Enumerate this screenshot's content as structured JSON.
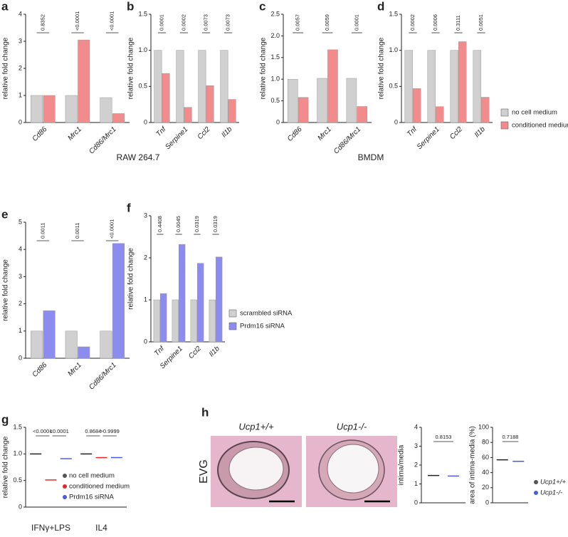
{
  "chart_data": [
    {
      "type": "bar",
      "panel": "a",
      "ylabel": "relative fold change",
      "categories": [
        "Cd86",
        "Mrc1",
        "Cd86/Mrc1"
      ],
      "series": [
        {
          "color": "#d0d0d0",
          "values": [
            1.0,
            1.0,
            0.92
          ]
        },
        {
          "color": "#f28b8b",
          "values": [
            1.0,
            3.05,
            0.33
          ]
        }
      ],
      "ylim": [
        0,
        4
      ],
      "yticks": [
        0,
        1,
        2,
        3,
        4
      ],
      "annotations": [
        "0.8352",
        "<0.0001",
        "<0.0001"
      ]
    },
    {
      "type": "bar",
      "panel": "b",
      "ylabel": "relative fold change",
      "categories": [
        "Tnf",
        "Serpine1",
        "Ccl2",
        "Il1b"
      ],
      "series": [
        {
          "color": "#d0d0d0",
          "values": [
            1.0,
            1.0,
            1.0,
            1.0
          ]
        },
        {
          "color": "#f28b8b",
          "values": [
            0.68,
            0.21,
            0.51,
            0.32
          ]
        }
      ],
      "ylim": [
        0,
        1.5
      ],
      "yticks": [
        0,
        0.5,
        {
          "value": 1,
          "label": "1.0"
        },
        1.5
      ],
      "annotations": [
        "0.0001",
        "0.0002",
        "0.0073",
        "0.0073"
      ]
    },
    {
      "type": "bar",
      "panel": "c",
      "ylabel": "relative fold change",
      "categories": [
        "Cd86",
        "Mrc1",
        "Cd86/Mrc1"
      ],
      "series": [
        {
          "color": "#d0d0d0",
          "values": [
            1.0,
            1.02,
            1.02
          ]
        },
        {
          "color": "#f28b8b",
          "values": [
            0.58,
            1.68,
            0.37
          ]
        }
      ],
      "ylim": [
        0,
        2.5
      ],
      "yticks": [
        0,
        0.5,
        {
          "value": 1,
          "label": "1.0"
        },
        1.5,
        {
          "value": 2,
          "label": "2.0"
        },
        2.5
      ],
      "annotations": [
        "0.0057",
        "0.0059",
        "0.0001"
      ]
    },
    {
      "type": "bar",
      "panel": "d",
      "ylabel": "relative fold change",
      "categories": [
        "Tnf",
        "Serpine1",
        "Ccl2",
        "Il1b"
      ],
      "series": [
        {
          "color": "#d0d0d0",
          "values": [
            1.0,
            1.0,
            1.0,
            1.0
          ]
        },
        {
          "color": "#f28b8b",
          "values": [
            0.47,
            0.22,
            1.12,
            0.35
          ]
        }
      ],
      "ylim": [
        0,
        1.5
      ],
      "yticks": [
        0,
        0.5,
        {
          "value": 1,
          "label": "1.0"
        },
        1.5
      ],
      "annotations": [
        "0.0002",
        "0.0006",
        "0.3111",
        "0.0051"
      ]
    },
    {
      "type": "bar",
      "panel": "e",
      "ylabel": "relative fold change",
      "categories": [
        "Cd86",
        "Mrc1",
        "Cd86/Mrc1"
      ],
      "series": [
        {
          "color": "#d0d0d0",
          "values": [
            1.0,
            1.0,
            1.0
          ]
        },
        {
          "color": "#8c8cf0",
          "values": [
            1.75,
            0.42,
            4.22
          ]
        }
      ],
      "ylim": [
        0,
        5
      ],
      "yticks": [
        0,
        1,
        2,
        3,
        4,
        5
      ],
      "annotations": [
        "0.0011",
        "0.0011",
        "<0.0001"
      ]
    },
    {
      "type": "bar",
      "panel": "f",
      "ylabel": "relative fold change",
      "categories": [
        "Tnf",
        "Serpine1",
        "Ccl2",
        "Il1b"
      ],
      "series": [
        {
          "color": "#d0d0d0",
          "values": [
            1.0,
            1.0,
            1.0,
            1.0
          ]
        },
        {
          "color": "#8c8cf0",
          "values": [
            1.15,
            2.32,
            1.87,
            2.02
          ]
        }
      ],
      "ylim": [
        0,
        3
      ],
      "yticks": [
        0,
        1,
        2,
        3
      ],
      "annotations": [
        "0.4408",
        "0.0045",
        "0.0319",
        "0.0319"
      ]
    },
    {
      "type": "dot",
      "panel": "g",
      "ylabel": "relative fold change",
      "categories": [
        "IFNγ+LPS",
        "IL4"
      ],
      "series": [
        {
          "color": "#555555",
          "values": [
            1.0,
            1.0
          ]
        },
        {
          "color": "#e8262a",
          "values": [
            0.51,
            0.93
          ]
        },
        {
          "color": "#4a5be0",
          "values": [
            0.91,
            0.93
          ]
        }
      ],
      "ylim": [
        0,
        1.5
      ],
      "yticks": [
        0,
        0.5,
        {
          "value": 1,
          "label": "1.0"
        },
        1.5
      ],
      "annotations": [
        "<0.0001",
        "<0.0001",
        "0.8684",
        ">0.9999"
      ]
    },
    {
      "type": "dot",
      "ylabel": "intima/media",
      "categories": [
        null
      ],
      "series": [
        {
          "color": "#555555",
          "values": [
            1.45
          ]
        },
        {
          "color": "#4a5be0",
          "values": [
            1.42
          ]
        }
      ],
      "ylim": [
        0,
        4
      ],
      "yticks": [
        0,
        1,
        2,
        3,
        4
      ],
      "annotations": [
        "0.8153"
      ]
    },
    {
      "type": "dot",
      "ylabel": "area of intima-media (%)",
      "categories": [
        null
      ],
      "series": [
        {
          "color": "#555555",
          "values": [
            57
          ]
        },
        {
          "color": "#4a5be0",
          "values": [
            55
          ]
        }
      ],
      "ylim": [
        0,
        100
      ],
      "yticks": [
        0,
        20,
        40,
        60,
        80,
        100
      ],
      "annotations": [
        "0.7188"
      ]
    }
  ],
  "group_labels": [
    "RAW 264.7",
    "BMDM"
  ],
  "legends": [
    {
      "entries": [
        {
          "name": "no cell medium",
          "color": "#d0d0d0"
        },
        {
          "name": "conditioned medium",
          "color": "#f28b8b"
        }
      ]
    },
    {
      "entries": [
        {
          "name": "scrambled siRNA",
          "color": "#d0d0d0"
        },
        {
          "name": "Prdm16 siRNA",
          "color": "#8c8cf0"
        }
      ]
    },
    {
      "entries": [
        {
          "name": "no cell medium",
          "color": "#555555"
        },
        {
          "name": "conditioned medium",
          "color": "#e8262a"
        },
        {
          "name": "Prdm16 siRNA",
          "color": "#4a5be0"
        }
      ]
    },
    {
      "entries": [
        {
          "name": "Ucp1+/+",
          "color": "#555555"
        },
        {
          "name": "Ucp1-/-",
          "color": "#4a5be0"
        }
      ]
    }
  ],
  "images": {
    "panel": "h",
    "stain": "EVG",
    "titles": [
      "Ucp1+/+",
      "Ucp1-/-"
    ]
  }
}
